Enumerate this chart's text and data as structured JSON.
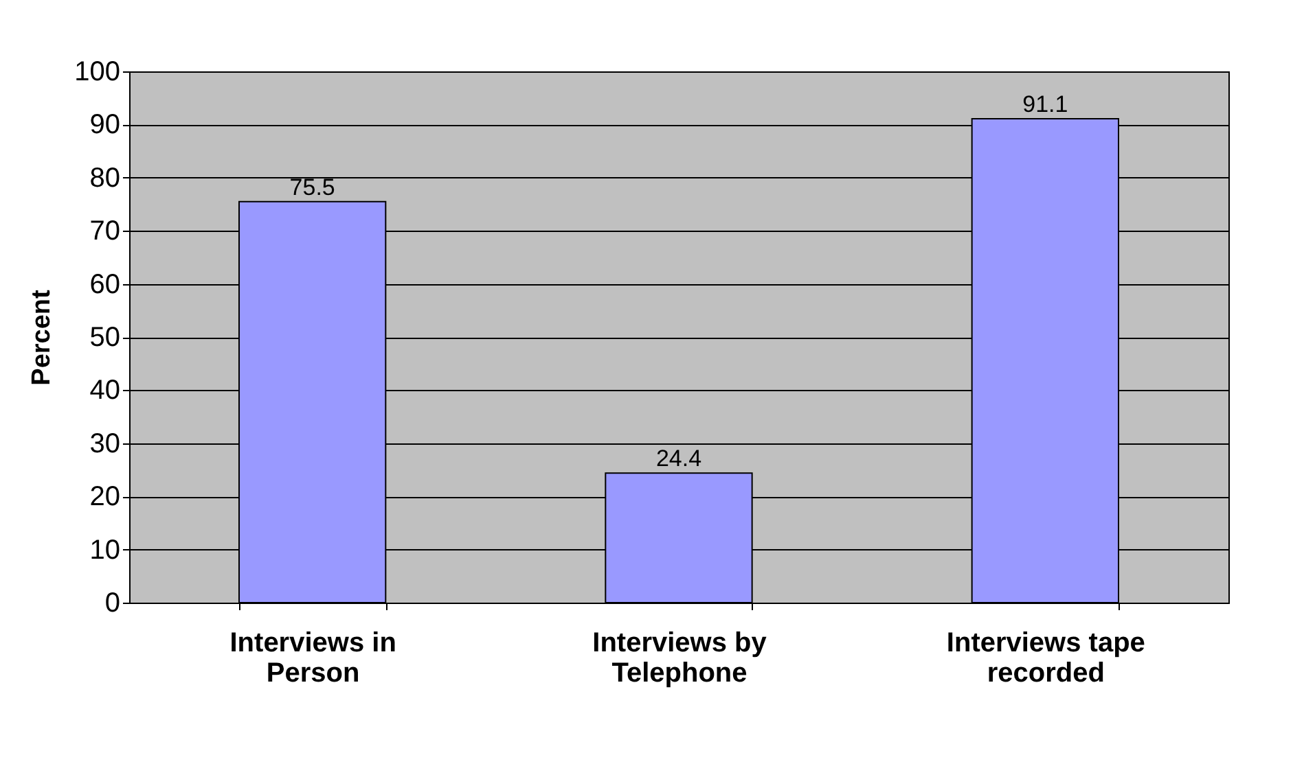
{
  "chart_data": {
    "type": "bar",
    "ylabel": "Percent",
    "categories": [
      "Interviews in Person",
      "Interviews by Telephone",
      "Interviews tape recorded"
    ],
    "values": [
      75.5,
      24.4,
      91.1
    ],
    "color": "#9999ff",
    "ylim": [
      0,
      100
    ],
    "yticks": [
      0,
      10,
      20,
      30,
      40,
      50,
      60,
      70,
      80,
      90,
      100
    ],
    "grid": "y",
    "data_labels": true
  }
}
